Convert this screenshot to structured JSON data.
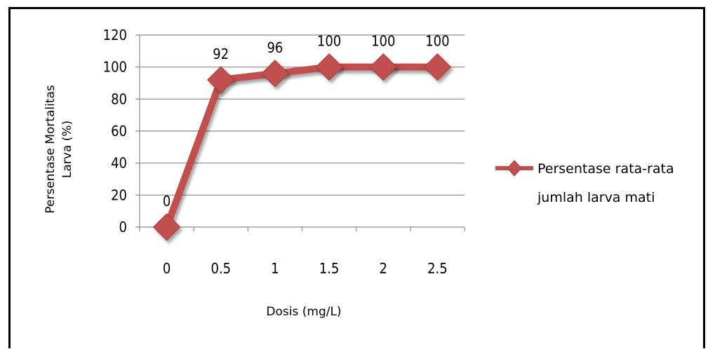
{
  "chart_data": {
    "type": "line",
    "x": [
      "0",
      "0.5",
      "1",
      "1.5",
      "2",
      "2.5"
    ],
    "series": [
      {
        "name": "Persentase rata-rata jumlah larva mati",
        "values": [
          0,
          92,
          96,
          100,
          100,
          100
        ]
      }
    ],
    "data_labels": [
      "0",
      "92",
      "96",
      "100",
      "100",
      "100"
    ],
    "xlabel": "Dosis (mg/L)",
    "ylabel_lines": [
      "Persentase Mortalitas",
      "Larva (%)"
    ],
    "ylim": [
      0,
      120
    ],
    "yticks": [
      "0",
      "20",
      "40",
      "60",
      "80",
      "100",
      "120"
    ],
    "legend_lines": [
      "Persentase rata-rata",
      "jumlah larva mati"
    ],
    "legend_position": "right",
    "grid": true,
    "line_color": "#c0504d",
    "marker_color": "#c0504d",
    "marker": "diamond"
  }
}
